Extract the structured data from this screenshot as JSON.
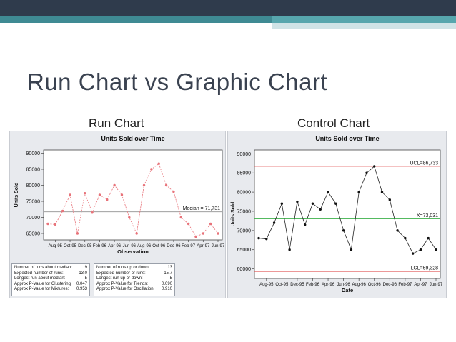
{
  "slide": {
    "title": "Run Chart vs Graphic Chart"
  },
  "colors": {
    "header_dark": "#2f3b4c",
    "header_teal": "#3f8a93",
    "run_line": "#e8737a",
    "median_line": "#909090",
    "ucl_lcl_line": "#e05a5a",
    "center_line": "#3cb04a",
    "plot_bg": "#ffffff",
    "panel_bg": "#e8eaee"
  },
  "run_chart": {
    "heading": "Run Chart",
    "stats_left": [
      {
        "label": "Number of runs about median:",
        "value": "9"
      },
      {
        "label": "Expected number of runs:",
        "value": "13.0"
      },
      {
        "label": "Longest run about median:",
        "value": "5"
      },
      {
        "label": "Approx P-Value for Clustering:",
        "value": "0.047"
      },
      {
        "label": "Approx P-Value for Mixtures:",
        "value": "0.953"
      }
    ],
    "stats_right": [
      {
        "label": "Number of runs up or down:",
        "value": "13"
      },
      {
        "label": "Expected number of runs:",
        "value": "15.7"
      },
      {
        "label": "Longest run up or down:",
        "value": "5"
      },
      {
        "label": "Approx P-Value for Trends:",
        "value": "0.090"
      },
      {
        "label": "Approx P-Value for Oscillation:",
        "value": "0.910"
      }
    ]
  },
  "control_chart": {
    "heading": "Control Chart"
  },
  "chart_data": [
    {
      "type": "line",
      "title": "Units Sold over Time",
      "xlabel": "Observation",
      "ylabel": "Units Sold",
      "ylim": [
        63000,
        91000
      ],
      "yticks": [
        65000,
        70000,
        75000,
        80000,
        85000,
        90000
      ],
      "ytick_labels": [
        "65000",
        "70000",
        "75000",
        "80000",
        "85000",
        "90000"
      ],
      "xtick_labels": [
        "Aug-95",
        "Oct-95",
        "Dec-95",
        "Feb-96",
        "Apr-96",
        "Jun-96",
        "Aug-96",
        "Oct-96",
        "Dec-96",
        "Feb-97",
        "Apr-97",
        "Jun-97"
      ],
      "x": [
        "Jul-95",
        "Aug-95",
        "Sep-95",
        "Oct-95",
        "Nov-95",
        "Dec-95",
        "Jan-96",
        "Feb-96",
        "Mar-96",
        "Apr-96",
        "May-96",
        "Jun-96",
        "Jul-96",
        "Aug-96",
        "Sep-96",
        "Oct-96",
        "Nov-96",
        "Dec-96",
        "Jan-97",
        "Feb-97",
        "Mar-97",
        "Apr-97",
        "May-97",
        "Jun-97"
      ],
      "series": [
        {
          "values": [
            68000,
            67800,
            72000,
            77000,
            65000,
            77500,
            71500,
            77000,
            75500,
            80000,
            77000,
            70000,
            65000,
            80000,
            85000,
            86733,
            80000,
            78000,
            70000,
            68000,
            64000,
            65000,
            68000,
            65000
          ]
        }
      ],
      "reference_lines": [
        {
          "label": "Median = 71,731",
          "value": 71731
        }
      ],
      "grid": false
    },
    {
      "type": "line",
      "title": "Units Sold over Time",
      "xlabel": "Date",
      "ylabel": "Units Sold",
      "ylim": [
        57500,
        91000
      ],
      "yticks": [
        60000,
        65000,
        70000,
        75000,
        80000,
        85000,
        90000
      ],
      "ytick_labels": [
        "60000",
        "65000",
        "70000",
        "75000",
        "80000",
        "85000",
        "90000"
      ],
      "xtick_labels": [
        "Aug-95",
        "Oct-95",
        "Dec-95",
        "Feb-96",
        "Apr-96",
        "Jun-96",
        "Aug-96",
        "Oct-96",
        "Dec-96",
        "Feb-97",
        "Apr-97",
        "Jun-97"
      ],
      "x": [
        "Jul-95",
        "Aug-95",
        "Sep-95",
        "Oct-95",
        "Nov-95",
        "Dec-95",
        "Jan-96",
        "Feb-96",
        "Mar-96",
        "Apr-96",
        "May-96",
        "Jun-96",
        "Jul-96",
        "Aug-96",
        "Sep-96",
        "Oct-96",
        "Nov-96",
        "Dec-96",
        "Jan-97",
        "Feb-97",
        "Mar-97",
        "Apr-97",
        "May-97",
        "Jun-97"
      ],
      "series": [
        {
          "values": [
            68000,
            67800,
            72000,
            77000,
            65000,
            77500,
            71500,
            77000,
            75500,
            80000,
            77000,
            70000,
            65000,
            80000,
            85000,
            86733,
            80000,
            78000,
            70000,
            68000,
            64000,
            65000,
            68000,
            65000
          ]
        }
      ],
      "reference_lines": [
        {
          "label": "UCL=86,733",
          "value": 86733
        },
        {
          "label": "X̄=73,031",
          "value": 73031
        },
        {
          "label": "LCL=59,328",
          "value": 59328
        }
      ],
      "grid": false
    }
  ]
}
